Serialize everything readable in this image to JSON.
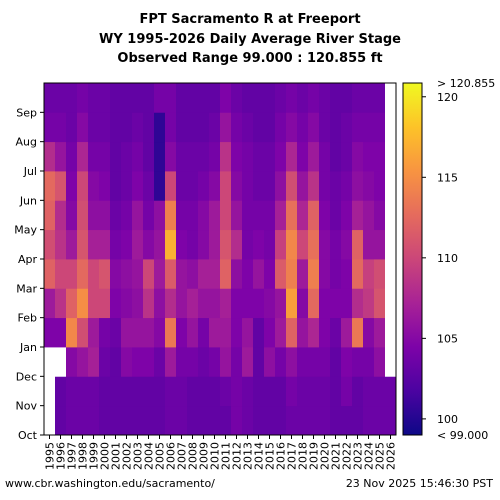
{
  "chart_data": {
    "type": "heatmap",
    "title": [
      "FPT Sacramento R at Freeport",
      "WY 1995-2026 Daily Average River Stage",
      "Observed Range 99.000 : 120.855 ft"
    ],
    "x_categories": [
      "1995",
      "1996",
      "1997",
      "1998",
      "1999",
      "2000",
      "2001",
      "2002",
      "2003",
      "2004",
      "2005",
      "2006",
      "2007",
      "2008",
      "2009",
      "2010",
      "2011",
      "2012",
      "2013",
      "2014",
      "2015",
      "2016",
      "2017",
      "2018",
      "2019",
      "2020",
      "2021",
      "2022",
      "2023",
      "2024",
      "2025",
      "2026"
    ],
    "y_categories": [
      "Oct",
      "Nov",
      "Dec",
      "Jan",
      "Feb",
      "Mar",
      "Apr",
      "May",
      "Jun",
      "Jul",
      "Aug",
      "Sep"
    ],
    "colorbar": {
      "min": 99.0,
      "max": 120.855,
      "ticks": [
        100,
        105,
        110,
        115,
        120
      ],
      "over_label": "> 120.855",
      "under_label": "< 99.000",
      "colormap": "plasma",
      "unit": "ft"
    },
    "approximate_monthly_stage_ft": {
      "1995": [
        null,
        null,
        null,
        104.5,
        106.5,
        112.0,
        110.5,
        112.0,
        112.5,
        108.0,
        104.0,
        103.5
      ],
      "1996": [
        103.0,
        103.0,
        null,
        104.5,
        108.5,
        110.0,
        108.5,
        108.0,
        111.0,
        106.0,
        104.0,
        103.5
      ],
      "1997": [
        103.5,
        103.5,
        105.0,
        114.5,
        112.0,
        110.0,
        106.5,
        105.0,
        104.5,
        104.0,
        103.5,
        103.5
      ],
      "1998": [
        103.5,
        103.5,
        106.0,
        110.5,
        115.0,
        112.5,
        111.0,
        110.5,
        110.0,
        107.5,
        105.0,
        104.0
      ],
      "1999": [
        103.5,
        103.5,
        107.0,
        106.5,
        110.0,
        110.0,
        107.0,
        105.5,
        105.0,
        104.0,
        103.5,
        103.5
      ],
      "2000": [
        103.0,
        103.0,
        103.5,
        104.0,
        110.0,
        111.0,
        107.0,
        105.5,
        104.5,
        104.0,
        103.5,
        103.5
      ],
      "2001": [
        103.0,
        103.0,
        103.0,
        103.5,
        104.5,
        105.0,
        104.0,
        103.5,
        103.0,
        103.0,
        103.0,
        103.0
      ],
      "2002": [
        103.0,
        103.0,
        105.0,
        106.0,
        105.0,
        105.5,
        104.5,
        104.0,
        103.5,
        103.5,
        103.0,
        103.0
      ],
      "2003": [
        103.0,
        103.0,
        104.5,
        106.0,
        105.5,
        106.0,
        106.5,
        106.0,
        104.5,
        104.0,
        103.5,
        103.0
      ],
      "2004": [
        103.0,
        103.0,
        104.5,
        106.0,
        108.5,
        110.0,
        105.0,
        104.0,
        103.5,
        103.0,
        103.0,
        103.0
      ],
      "2005": [
        103.0,
        103.0,
        103.5,
        105.0,
        105.5,
        106.5,
        106.0,
        105.5,
        100.5,
        100.5,
        100.5,
        104.0
      ],
      "2006": [
        103.5,
        103.5,
        106.5,
        113.5,
        108.0,
        111.5,
        117.0,
        114.0,
        110.0,
        105.0,
        104.0,
        104.0
      ],
      "2007": [
        103.5,
        103.5,
        104.0,
        104.5,
        106.0,
        106.0,
        104.5,
        104.0,
        103.5,
        103.5,
        103.0,
        103.0
      ],
      "2008": [
        103.0,
        103.0,
        104.0,
        106.0,
        107.0,
        105.5,
        104.0,
        104.0,
        103.5,
        103.5,
        103.0,
        103.0
      ],
      "2009": [
        103.0,
        103.0,
        103.5,
        104.0,
        106.0,
        107.0,
        105.0,
        105.0,
        104.0,
        103.5,
        103.0,
        103.0
      ],
      "2010": [
        103.0,
        103.0,
        104.0,
        106.5,
        106.0,
        107.0,
        106.5,
        106.5,
        105.0,
        104.0,
        103.5,
        103.0
      ],
      "2011": [
        103.0,
        103.5,
        106.0,
        106.5,
        107.0,
        112.0,
        111.0,
        110.0,
        110.0,
        108.5,
        106.0,
        104.5
      ],
      "2012": [
        104.0,
        104.0,
        104.0,
        104.5,
        104.5,
        105.5,
        108.0,
        106.0,
        105.0,
        104.5,
        104.0,
        103.5
      ],
      "2013": [
        103.5,
        103.5,
        106.5,
        106.0,
        104.5,
        104.5,
        104.0,
        104.0,
        104.0,
        104.0,
        103.5,
        103.0
      ],
      "2014": [
        103.0,
        103.0,
        103.0,
        103.0,
        104.5,
        106.0,
        104.5,
        104.0,
        103.5,
        103.5,
        103.0,
        103.0
      ],
      "2015": [
        103.0,
        103.0,
        105.5,
        104.5,
        105.0,
        104.5,
        104.0,
        104.0,
        103.5,
        103.5,
        103.0,
        103.0
      ],
      "2016": [
        103.0,
        103.0,
        104.0,
        106.5,
        106.0,
        111.5,
        109.5,
        107.0,
        105.5,
        104.5,
        104.0,
        103.5
      ],
      "2017": [
        103.5,
        104.0,
        105.5,
        112.0,
        116.0,
        114.0,
        114.5,
        113.0,
        110.5,
        107.5,
        105.0,
        104.0
      ],
      "2018": [
        103.5,
        103.5,
        104.0,
        106.0,
        105.0,
        106.5,
        110.0,
        107.5,
        106.0,
        104.5,
        104.0,
        103.5
      ],
      "2019": [
        103.5,
        103.5,
        104.0,
        107.5,
        112.5,
        114.0,
        113.0,
        112.0,
        108.5,
        106.5,
        105.0,
        104.0
      ],
      "2020": [
        103.5,
        103.5,
        104.0,
        104.5,
        104.5,
        105.0,
        105.0,
        104.5,
        104.0,
        104.0,
        103.5,
        103.5
      ],
      "2021": [
        103.0,
        103.0,
        103.0,
        103.5,
        104.5,
        104.0,
        104.0,
        103.5,
        103.5,
        103.0,
        103.0,
        103.0
      ],
      "2022": [
        103.0,
        104.0,
        104.5,
        106.5,
        104.5,
        104.5,
        105.0,
        104.5,
        104.0,
        103.5,
        103.5,
        103.0
      ],
      "2023": [
        103.0,
        103.0,
        104.0,
        113.5,
        108.0,
        112.5,
        112.0,
        107.0,
        105.5,
        105.0,
        104.0,
        103.5
      ],
      "2024": [
        103.5,
        103.5,
        104.0,
        105.0,
        109.0,
        109.5,
        106.0,
        106.0,
        105.0,
        104.5,
        104.0,
        103.5
      ],
      "2025": [
        103.5,
        103.5,
        105.5,
        106.5,
        111.0,
        110.5,
        106.0,
        105.0,
        104.5,
        104.5,
        104.0,
        103.5
      ],
      "2026": [
        103.5,
        103.5,
        null,
        null,
        null,
        null,
        null,
        null,
        null,
        null,
        null,
        null
      ]
    }
  },
  "footer": {
    "url": "www.cbr.washington.edu/sacramento/",
    "timestamp": "23 Nov 2025 15:46:30 PST"
  }
}
